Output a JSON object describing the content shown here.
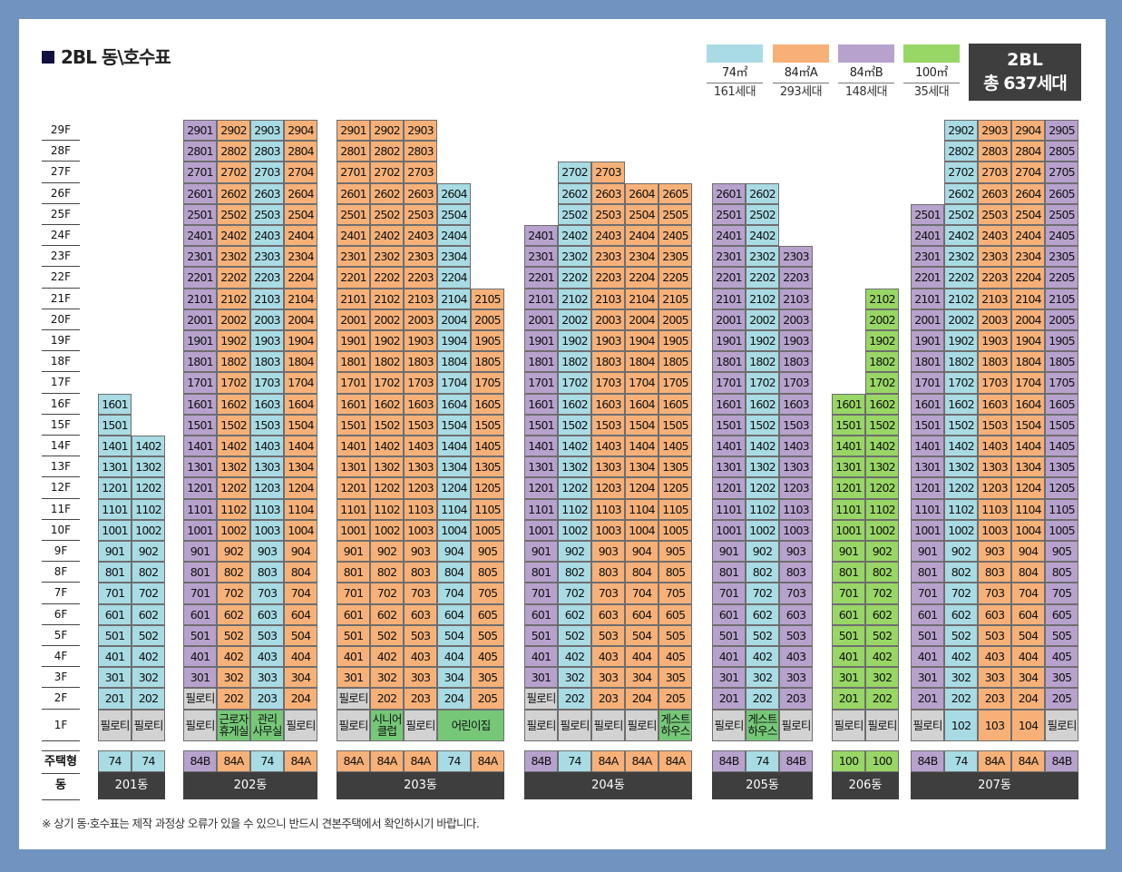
{
  "title": "2BL 동\\호수표",
  "legend": [
    {
      "type": "74㎡",
      "count": "161세대",
      "color": "#a8dbe4"
    },
    {
      "type": "84㎡A",
      "count": "293세대",
      "color": "#f7b178"
    },
    {
      "type": "84㎡B",
      "count": "148세대",
      "color": "#b7a2cd"
    },
    {
      "type": "100㎡",
      "count": "35세대",
      "color": "#98d665"
    }
  ],
  "total": {
    "block": "2BL",
    "label": "총 637세대"
  },
  "floors": [
    "29F",
    "28F",
    "27F",
    "26F",
    "25F",
    "24F",
    "23F",
    "22F",
    "21F",
    "20F",
    "19F",
    "18F",
    "17F",
    "16F",
    "15F",
    "14F",
    "13F",
    "12F",
    "11F",
    "10F",
    "9F",
    "8F",
    "7F",
    "6F",
    "5F",
    "4F",
    "3F",
    "2F",
    "1F"
  ],
  "row_labels": {
    "type": "주택형",
    "building": "동"
  },
  "buildings": [
    {
      "name": "201동",
      "types": [
        "74",
        "74"
      ],
      "top": [
        16,
        14
      ],
      "floor2": [
        "201",
        "202"
      ],
      "floor1": [
        "필로티",
        "필로티"
      ]
    },
    {
      "name": "202동",
      "types": [
        "84B",
        "84A",
        "74",
        "84A"
      ],
      "top": [
        29,
        29,
        29,
        29
      ],
      "floor2": [
        "필로티",
        "202",
        "203",
        "204"
      ],
      "floor1": [
        "필로티",
        "근로자 휴게실",
        "관리 사무실",
        "필로티"
      ]
    },
    {
      "name": "203동",
      "types": [
        "84A",
        "84A",
        "84A",
        "74",
        "84A"
      ],
      "top": [
        29,
        29,
        29,
        26,
        21
      ],
      "floor2": [
        "필로티",
        "202",
        "203",
        "204",
        "205"
      ],
      "floor1": [
        "필로티",
        "시니어 클럽",
        "필로티",
        "어린이집"
      ]
    },
    {
      "name": "204동",
      "types": [
        "84B",
        "74",
        "84A",
        "84A",
        "84A"
      ],
      "top": [
        24,
        27,
        27,
        26,
        26
      ],
      "floor2": [
        "필로티",
        "202",
        "203",
        "204",
        "205"
      ],
      "floor1": [
        "필로티",
        "필로티",
        "필로티",
        "필로티",
        "게스트 하우스"
      ]
    },
    {
      "name": "205동",
      "types": [
        "84B",
        "74",
        "84B"
      ],
      "top": [
        26,
        26,
        23
      ],
      "floor2": [
        "201",
        "202",
        "203"
      ],
      "floor1": [
        "필로티",
        "게스트 하우스",
        "필로티"
      ]
    },
    {
      "name": "206동",
      "types": [
        "100",
        "100"
      ],
      "top": [
        16,
        21
      ],
      "floor2": [
        "201",
        "202"
      ],
      "floor1": [
        "필로티",
        "필로티"
      ]
    },
    {
      "name": "207동",
      "types": [
        "84B",
        "74",
        "84A",
        "84A",
        "84B"
      ],
      "top": [
        25,
        29,
        29,
        29,
        29
      ],
      "floor2": [
        "201",
        "202",
        "203",
        "204",
        "205"
      ],
      "floor1": [
        "필로티",
        "102",
        "103",
        "104",
        "필로티"
      ]
    }
  ],
  "footnote": "※ 상기 동·호수표는 제작 과정상 오류가 있을 수 있으니 반드시 견본주택에서 확인하시기 바랍니다."
}
